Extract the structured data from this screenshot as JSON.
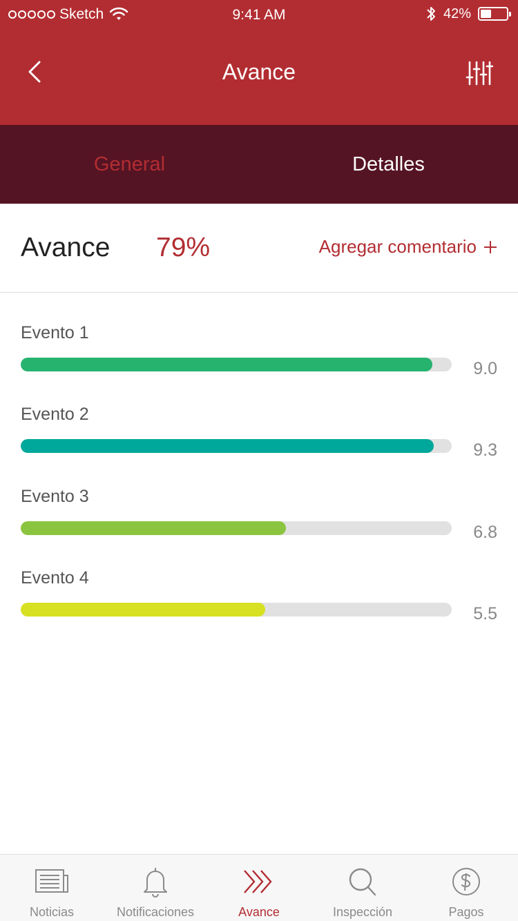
{
  "status_bar": {
    "carrier": "Sketch",
    "time": "9:41 AM",
    "battery": "42%",
    "battery_level": 0.42
  },
  "nav": {
    "title": "Avance",
    "back_icon": "chevron-left-icon",
    "filter_icon": "sliders-icon"
  },
  "tabs": [
    {
      "label": "General",
      "active": false
    },
    {
      "label": "Detalles",
      "active": true
    }
  ],
  "summary": {
    "label": "Avance",
    "value": "79%",
    "add_comment": "Agregar comentario",
    "add_icon": "plus-icon"
  },
  "events": [
    {
      "label": "Evento 1",
      "value": "9.0",
      "progress": 0.955,
      "color": "#26b36e"
    },
    {
      "label": "Evento 2",
      "value": "9.3",
      "progress": 0.958,
      "color": "#00a89b"
    },
    {
      "label": "Evento 3",
      "value": "6.8",
      "progress": 0.615,
      "color": "#8bc53f"
    },
    {
      "label": "Evento 4",
      "value": "5.5",
      "progress": 0.568,
      "color": "#d7e021"
    }
  ],
  "tab_bar": [
    {
      "label": "Noticias",
      "icon": "newspaper-icon",
      "active": false
    },
    {
      "label": "Notificaciones",
      "icon": "bell-icon",
      "active": false
    },
    {
      "label": "Avance",
      "icon": "triple-chevron-right-icon",
      "active": true
    },
    {
      "label": "Inspección",
      "icon": "magnifier-icon",
      "active": false
    },
    {
      "label": "Pagos",
      "icon": "dollar-circle-icon",
      "active": false
    }
  ],
  "colors": {
    "brand_red": "#b22d32",
    "dark_maroon": "#551424",
    "track_gray": "#e1e1e1"
  }
}
